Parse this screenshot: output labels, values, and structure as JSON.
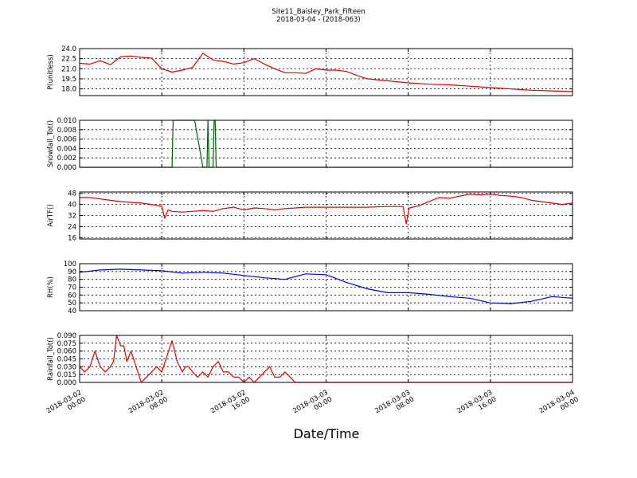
{
  "title": {
    "line1": "Site11_Baisley_Park_Fifteen",
    "line2": "2018-03-04 - (2018-063)"
  },
  "xaxis_title": "Date/Time",
  "chart_data": [
    {
      "type": "line",
      "ylabel": "P(unitless)",
      "ylim": [
        17.0,
        24.0
      ],
      "yticks": [
        18.0,
        19.5,
        21.0,
        22.5,
        24.0
      ],
      "ytick_labels": [
        "18.0",
        "19.5",
        "21.0",
        "22.5",
        "24.0"
      ],
      "grid": true,
      "color": "#e00000",
      "x": [
        0,
        1,
        2,
        3,
        4,
        5,
        6,
        7,
        8,
        9,
        10,
        11,
        12,
        13,
        14,
        15,
        16,
        17,
        18,
        19,
        20,
        21,
        22,
        23,
        24,
        25,
        26,
        27,
        28,
        30,
        32,
        34,
        36,
        38,
        40,
        42,
        44,
        46,
        48
      ],
      "y": [
        21.8,
        21.7,
        22.2,
        21.6,
        22.8,
        22.9,
        22.7,
        22.6,
        21.0,
        20.5,
        20.8,
        21.2,
        23.3,
        22.3,
        22.1,
        21.7,
        21.9,
        22.5,
        21.7,
        21.0,
        20.4,
        20.4,
        20.3,
        21.0,
        20.8,
        20.8,
        20.6,
        20.0,
        19.5,
        19.2,
        18.9,
        18.7,
        18.6,
        18.4,
        18.2,
        18.0,
        17.8,
        17.7,
        17.6
      ]
    },
    {
      "type": "line",
      "ylabel": "Snowfall_Tot()",
      "ylim": [
        0.0,
        0.01
      ],
      "yticks": [
        0.0,
        0.002,
        0.004,
        0.006,
        0.008,
        0.01
      ],
      "ytick_labels": [
        "0.000",
        "0.002",
        "0.004",
        "0.006",
        "0.008",
        "0.010"
      ],
      "grid": true,
      "color": "#006400",
      "x": [
        0,
        9.0,
        9.1,
        9.9,
        10.0,
        11.0,
        11.1,
        11.2,
        12.0,
        12.4,
        12.5,
        12.6,
        13.0,
        13.1,
        13.2,
        13.3,
        48
      ],
      "y": [
        0,
        0,
        0.01,
        0.01,
        0.01,
        0.01,
        0.01,
        0.01,
        0,
        0,
        0.01,
        0,
        0,
        0.01,
        0.01,
        0,
        0
      ]
    },
    {
      "type": "line",
      "ylabel": "AirTF()",
      "ylim": [
        15,
        49
      ],
      "yticks": [
        16,
        24,
        32,
        40,
        48
      ],
      "ytick_labels": [
        "16",
        "24",
        "32",
        "40",
        "48"
      ],
      "grid": true,
      "color": "#e00000",
      "x": [
        0,
        1,
        2,
        3,
        4,
        5,
        6,
        7,
        7.8,
        8.0,
        8.3,
        8.6,
        9.0,
        10,
        11,
        12,
        13,
        14,
        15,
        16,
        17,
        18,
        19,
        20,
        21,
        22,
        24,
        26,
        28,
        30,
        31.5,
        31.8,
        32.1,
        33,
        34,
        35,
        36,
        37,
        38,
        39,
        40,
        41,
        42,
        43,
        44,
        45,
        46,
        47,
        48
      ],
      "y": [
        45,
        45,
        44,
        43,
        42,
        41.5,
        41,
        40,
        39,
        38.5,
        30,
        36,
        35,
        34.5,
        35,
        35.5,
        35,
        37,
        38,
        36,
        37.5,
        37,
        36,
        37,
        37.5,
        38,
        38,
        38,
        38,
        38.5,
        38.5,
        26,
        37.5,
        39,
        42,
        45,
        44.5,
        46,
        47.5,
        47,
        47.5,
        46.5,
        46,
        45,
        43,
        42,
        41,
        40,
        41
      ]
    },
    {
      "type": "line",
      "ylabel": "RH(%)",
      "ylim": [
        40,
        100
      ],
      "yticks": [
        40,
        50,
        60,
        70,
        80,
        90,
        100
      ],
      "ytick_labels": [
        "40",
        "50",
        "60",
        "70",
        "80",
        "90",
        "100"
      ],
      "grid": true,
      "color": "#0000e0",
      "x": [
        0,
        2,
        4,
        6,
        8,
        10,
        12,
        14,
        16,
        18,
        20,
        22,
        24,
        26,
        28,
        30,
        32,
        34,
        36,
        38,
        40,
        42,
        44,
        46,
        48
      ],
      "y": [
        89,
        92,
        93,
        92,
        91,
        88,
        89,
        88,
        85,
        82,
        80,
        87,
        86,
        76,
        68,
        63,
        63,
        61,
        58,
        56,
        50,
        49,
        52,
        58,
        56
      ]
    },
    {
      "type": "line",
      "ylabel": "Rainfall_Tot()",
      "ylim": [
        0.0,
        0.09
      ],
      "yticks": [
        0.0,
        0.015,
        0.03,
        0.045,
        0.06,
        0.075,
        0.09
      ],
      "ytick_labels": [
        "0.000",
        "0.015",
        "0.030",
        "0.045",
        "0.060",
        "0.075",
        "0.090"
      ],
      "grid": true,
      "color": "#e00000",
      "x": [
        0,
        0.5,
        1,
        1.5,
        2,
        2.5,
        3,
        3.3,
        3.6,
        4.0,
        4.3,
        4.6,
        5.0,
        5.5,
        6.0,
        6.5,
        7.0,
        7.5,
        8.0,
        8.5,
        9.0,
        9.5,
        10.0,
        10.3,
        10.6,
        11.0,
        11.5,
        12.0,
        12.5,
        13.0,
        13.5,
        14.0,
        14.5,
        15.0,
        15.5,
        16.0,
        16.5,
        17.0,
        17.5,
        18.0,
        18.5,
        19.0,
        19.5,
        20.0,
        20.5,
        21.0,
        21.5,
        48
      ],
      "y": [
        0.03,
        0.02,
        0.03,
        0.06,
        0.03,
        0.02,
        0.03,
        0.04,
        0.09,
        0.07,
        0.07,
        0.04,
        0.06,
        0.03,
        0.0,
        0.01,
        0.02,
        0.03,
        0.02,
        0.05,
        0.08,
        0.04,
        0.02,
        0.03,
        0.03,
        0.02,
        0.01,
        0.02,
        0.01,
        0.03,
        0.04,
        0.02,
        0.02,
        0.01,
        0.01,
        0.0,
        0.01,
        0.0,
        0.01,
        0.02,
        0.03,
        0.01,
        0.01,
        0.02,
        0.01,
        0.0,
        0.0,
        0.0
      ]
    }
  ],
  "xaxis": {
    "range": [
      0,
      48
    ],
    "ticks": [
      0,
      8,
      16,
      24,
      32,
      40,
      48
    ],
    "tick_labels": [
      [
        "2018-03-02",
        "00:00"
      ],
      [
        "2018-03-02",
        "08:00"
      ],
      [
        "2018-03-02",
        "16:00"
      ],
      [
        "2018-03-03",
        "00:00"
      ],
      [
        "2018-03-03",
        "08:00"
      ],
      [
        "2018-03-03",
        "16:00"
      ],
      [
        "2018-03-04",
        "00:00"
      ]
    ]
  }
}
